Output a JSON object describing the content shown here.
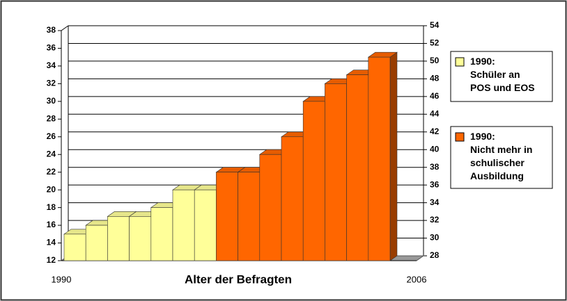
{
  "chart_data": {
    "type": "bar3d",
    "x_label": "Alter der Befragten",
    "categories": [
      null,
      null,
      null,
      null,
      null,
      null,
      null,
      null,
      null,
      null,
      null,
      null,
      null,
      null,
      null
    ],
    "xlim": [
      1990,
      2006
    ],
    "xticks": [
      1990,
      2006
    ],
    "ylim": [
      12,
      38
    ],
    "yticks": [
      12,
      14,
      16,
      18,
      20,
      22,
      24,
      26,
      28,
      30,
      32,
      34,
      36,
      38
    ],
    "y2lim": [
      28,
      54
    ],
    "y2ticks": [
      28,
      30,
      32,
      34,
      36,
      38,
      40,
      42,
      44,
      46,
      48,
      50,
      52,
      54
    ],
    "grid": true,
    "legend": "right",
    "series": [
      {
        "name": "1990: Schüler an POS und EOS",
        "color": "#ffff99",
        "values": [
          15,
          16,
          17,
          17,
          18,
          20,
          20,
          null,
          null,
          null,
          null,
          null,
          null,
          null,
          null
        ]
      },
      {
        "name": "1990: Nicht mehr in schulischer Ausbildung",
        "color": "#ff6600",
        "axis": "y2",
        "values": [
          null,
          null,
          null,
          null,
          null,
          null,
          null,
          38,
          38,
          40,
          42,
          46,
          48,
          49,
          51
        ]
      }
    ]
  }
}
